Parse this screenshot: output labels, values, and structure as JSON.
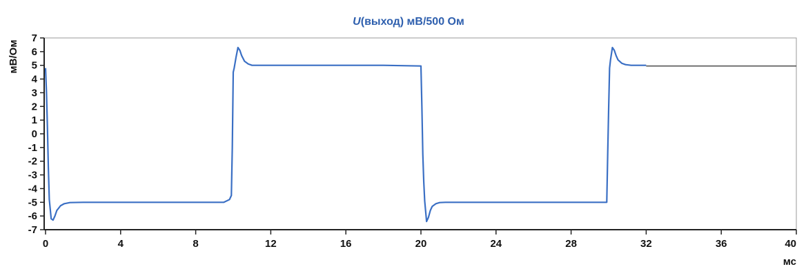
{
  "chart_data": {
    "type": "line",
    "title_symbol": "U",
    "title_rest": "(выход) мВ/500 Ом",
    "ylabel": "мВ/Ом",
    "xlabel": "мс",
    "xlim": [
      0,
      40
    ],
    "ylim": [
      -7,
      7
    ],
    "x_ticks": [
      "0",
      "4",
      "8",
      "12",
      "16",
      "20",
      "24",
      "28",
      "32",
      "36",
      "40"
    ],
    "y_ticks": [
      "7",
      "6",
      "5",
      "4",
      "3",
      "2",
      "1",
      "0",
      "-1",
      "-2",
      "-3",
      "-4",
      "-5",
      "-6",
      "-7"
    ],
    "grid": false,
    "colors": {
      "signal": "#3a6fc4",
      "signal_tail": "#555555",
      "title": "#2e5fae",
      "axis": "#222222",
      "frame": "#9a9a9a"
    },
    "series": [
      {
        "x": [
          0,
          0.05,
          0.1,
          0.15,
          0.2,
          0.3,
          0.4,
          0.5,
          0.6,
          0.8,
          1.0,
          1.3,
          2.0,
          4,
          6,
          8,
          9.5,
          9.8,
          9.9,
          9.95,
          10.0,
          10.05,
          10.15,
          10.25,
          10.35,
          10.45,
          10.6,
          10.8,
          11.0,
          11.5,
          12,
          14,
          16,
          18,
          20.0,
          20.05,
          20.1,
          20.15,
          20.2,
          20.3,
          20.4,
          20.5,
          20.6,
          20.8,
          21.0,
          21.3,
          22,
          24,
          26,
          28,
          29.9,
          29.95,
          30.0,
          30.05,
          30.1,
          30.2,
          30.3,
          30.4,
          30.5,
          30.7,
          30.9,
          31.2,
          32
        ],
        "y": [
          4.8,
          3.0,
          0.5,
          -2.5,
          -4.8,
          -6.2,
          -6.3,
          -6.0,
          -5.6,
          -5.25,
          -5.1,
          -5.02,
          -5.0,
          -5.0,
          -5.0,
          -5.0,
          -5.0,
          -4.8,
          -4.5,
          -1.0,
          4.5,
          4.8,
          5.6,
          6.3,
          6.1,
          5.7,
          5.3,
          5.1,
          5.0,
          5.0,
          5.0,
          5.0,
          5.0,
          5.0,
          4.95,
          2.0,
          -1.5,
          -3.5,
          -4.9,
          -6.4,
          -6.1,
          -5.6,
          -5.3,
          -5.1,
          -5.02,
          -5.0,
          -5.0,
          -5.0,
          -5.0,
          -5.0,
          -5.0,
          -1.5,
          1.8,
          4.8,
          5.4,
          6.3,
          6.1,
          5.7,
          5.4,
          5.15,
          5.05,
          5.0,
          5.0
        ]
      },
      {
        "x": [
          32,
          36,
          40
        ],
        "y": [
          4.95,
          4.95,
          4.95
        ]
      }
    ]
  }
}
